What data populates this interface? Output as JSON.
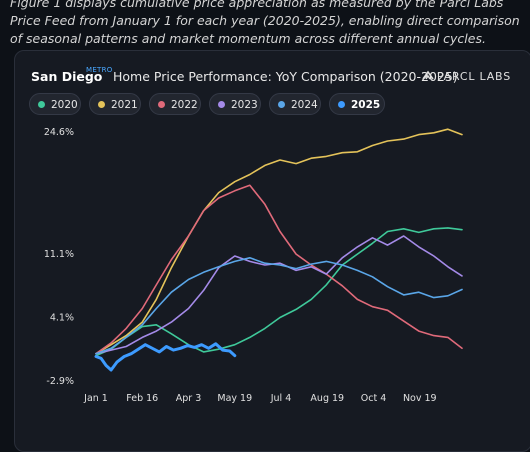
{
  "caption": "Figure 1 displays cumulative price appreciation as measured by the Parcl Labs Price Feed from January 1 for each year (2020-2025), enabling direct comparison of seasonal patterns and market momentum across different annual cycles.",
  "header": {
    "city": "San Diego",
    "metro": "METRO",
    "title": "Home Price Performance: YoY Comparison (2020-2025)",
    "brand": "PARCL LABS"
  },
  "colors": {
    "2020": "#3fc99a",
    "2021": "#e4c35a",
    "2022": "#e06a7a",
    "2023": "#a48ae8",
    "2024": "#5aa6e8",
    "2025": "#3d9bff"
  },
  "legend": [
    {
      "label": "2020",
      "active": false
    },
    {
      "label": "2021",
      "active": false
    },
    {
      "label": "2022",
      "active": false
    },
    {
      "label": "2023",
      "active": false
    },
    {
      "label": "2024",
      "active": false
    },
    {
      "label": "2025",
      "active": true
    }
  ],
  "chart_data": {
    "type": "line",
    "title": "Home Price Performance: YoY Comparison (2020-2025)",
    "xlabel": "",
    "ylabel": "",
    "x_ticks": [
      "Jan 1",
      "Feb 16",
      "Apr 3",
      "May 19",
      "Jul 4",
      "Aug 19",
      "Oct 4",
      "Nov 19"
    ],
    "y_ticks": [
      "24.6%",
      "11.1%",
      "4.1%",
      "-2.9%"
    ],
    "ylim": [
      -2.9,
      24.6
    ],
    "grid": false,
    "legend_position": "top",
    "x_unit": "day of year",
    "series": [
      {
        "name": "2020",
        "x": [
          0,
          15,
          30,
          46,
          60,
          75,
          92,
          107,
          122,
          138,
          153,
          168,
          183,
          199,
          214,
          229,
          245,
          260,
          275,
          290,
          306,
          321,
          336,
          350,
          364
        ],
        "y": [
          -0.2,
          0.5,
          1.8,
          3.0,
          3.2,
          2.2,
          1.0,
          0.2,
          0.5,
          1.0,
          1.8,
          2.8,
          4.0,
          4.9,
          6.0,
          7.6,
          9.8,
          11.0,
          12.2,
          13.5,
          13.8,
          13.4,
          13.8,
          13.9,
          13.7
        ]
      },
      {
        "name": "2021",
        "x": [
          0,
          15,
          30,
          46,
          60,
          75,
          92,
          107,
          122,
          138,
          153,
          168,
          183,
          199,
          214,
          229,
          245,
          260,
          275,
          290,
          306,
          321,
          336,
          350,
          364
        ],
        "y": [
          0.0,
          1.0,
          2.0,
          3.5,
          6.0,
          9.5,
          13.0,
          15.8,
          17.8,
          19.0,
          19.8,
          20.8,
          21.4,
          21.0,
          21.6,
          21.8,
          22.2,
          22.3,
          23.0,
          23.5,
          23.7,
          24.2,
          24.4,
          24.8,
          24.2
        ]
      },
      {
        "name": "2022",
        "x": [
          0,
          15,
          30,
          46,
          60,
          75,
          92,
          107,
          122,
          138,
          153,
          168,
          183,
          199,
          214,
          229,
          245,
          260,
          275,
          290,
          306,
          321,
          336,
          350,
          364
        ],
        "y": [
          0.0,
          1.2,
          2.8,
          5.0,
          7.6,
          10.4,
          13.0,
          15.8,
          17.2,
          18.0,
          18.6,
          16.5,
          13.5,
          11.0,
          9.8,
          8.8,
          7.5,
          6.0,
          5.2,
          4.8,
          3.6,
          2.5,
          2.0,
          1.8,
          0.6
        ]
      },
      {
        "name": "2023",
        "x": [
          0,
          15,
          30,
          46,
          60,
          75,
          92,
          107,
          122,
          138,
          153,
          168,
          183,
          199,
          214,
          229,
          245,
          260,
          275,
          290,
          306,
          321,
          336,
          350,
          364
        ],
        "y": [
          0.0,
          0.4,
          0.8,
          1.8,
          2.5,
          3.5,
          5.0,
          7.0,
          9.5,
          10.8,
          10.2,
          9.8,
          10.0,
          9.2,
          9.6,
          8.8,
          10.6,
          11.8,
          12.8,
          12.0,
          13.0,
          11.8,
          10.8,
          9.6,
          8.6
        ]
      },
      {
        "name": "2024",
        "x": [
          0,
          15,
          30,
          46,
          60,
          75,
          92,
          107,
          122,
          138,
          153,
          168,
          183,
          199,
          214,
          229,
          245,
          260,
          275,
          290,
          306,
          321,
          336,
          350,
          364
        ],
        "y": [
          0.0,
          0.6,
          1.8,
          3.2,
          5.0,
          6.8,
          8.2,
          9.0,
          9.6,
          10.2,
          10.6,
          10.0,
          9.8,
          9.4,
          9.9,
          10.2,
          9.8,
          9.2,
          8.5,
          7.4,
          6.5,
          6.8,
          6.2,
          6.4,
          7.1
        ]
      },
      {
        "name": "2025",
        "x": [
          0,
          5,
          10,
          15,
          21,
          28,
          35,
          42,
          49,
          56,
          63,
          70,
          77,
          84,
          91,
          98,
          105,
          112,
          119,
          126,
          133,
          138
        ],
        "y": [
          -0.3,
          -0.5,
          -1.3,
          -1.8,
          -0.9,
          -0.3,
          0.0,
          0.5,
          1.0,
          0.6,
          0.2,
          0.8,
          0.4,
          0.6,
          0.9,
          0.7,
          1.0,
          0.6,
          1.1,
          0.4,
          0.3,
          -0.2
        ]
      }
    ]
  }
}
